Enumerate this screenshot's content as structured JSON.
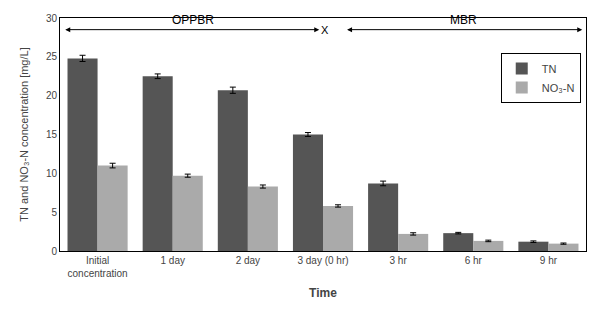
{
  "chart_data": {
    "type": "bar",
    "categories": [
      "Initial\nconcentration",
      "1 day",
      "2 day",
      "3 day (0 hr)",
      "3 hr",
      "6 hr",
      "9 hr"
    ],
    "series": [
      {
        "name": "TN",
        "color": "#555555",
        "values": [
          24.8,
          22.5,
          20.7,
          15.0,
          8.7,
          2.3,
          1.2
        ],
        "errors": [
          0.4,
          0.3,
          0.4,
          0.25,
          0.3,
          0.1,
          0.1
        ]
      },
      {
        "name": "NO₃-N",
        "color": "#aaaaaa",
        "values": [
          11.0,
          9.7,
          8.3,
          5.8,
          2.2,
          1.3,
          0.95
        ],
        "errors": [
          0.3,
          0.2,
          0.2,
          0.15,
          0.15,
          0.1,
          0.08
        ]
      }
    ],
    "xlabel": "Time",
    "ylabel": "TN and NO₃-N concentration [mg/L]",
    "ylim": [
      0,
      30
    ],
    "yticks": [
      0,
      5,
      10,
      15,
      20,
      25,
      30
    ],
    "grid": false,
    "legend": "upper right",
    "annotations": [
      "OPPBR",
      "X",
      "MBR"
    ]
  }
}
